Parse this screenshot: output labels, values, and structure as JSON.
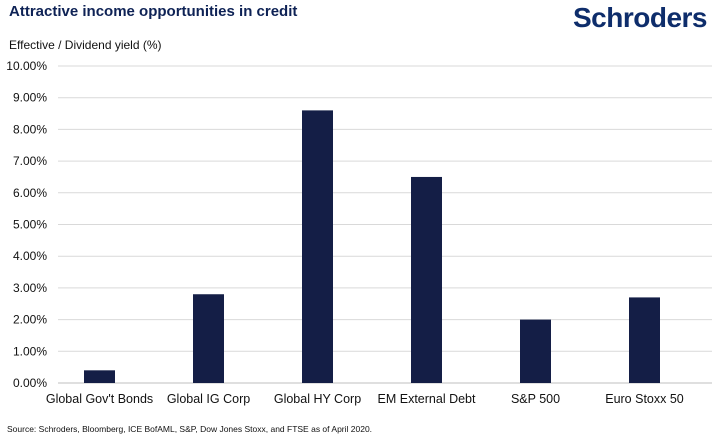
{
  "header": {
    "title": "Attractive income opportunities in credit",
    "logo_text": "Schroders"
  },
  "footer": {
    "source": "Source: Schroders, Bloomberg, ICE BofAML, S&P, Dow Jones Stoxx, and FTSE as of April 2020."
  },
  "chart_data": {
    "type": "bar",
    "title": "Attractive income opportunities in credit",
    "ylabel": "Effective / Dividend yield (%)",
    "xlabel": "",
    "categories": [
      "Global Gov't Bonds",
      "Global IG Corp",
      "Global HY Corp",
      "EM External Debt",
      "S&P 500",
      "Euro Stoxx 50"
    ],
    "values": [
      0.4,
      2.8,
      8.6,
      6.5,
      2.0,
      2.7
    ],
    "ylim": [
      0,
      10
    ],
    "yticks": [
      0,
      1,
      2,
      3,
      4,
      5,
      6,
      7,
      8,
      9,
      10
    ],
    "ytick_labels": [
      "0.00%",
      "1.00%",
      "2.00%",
      "3.00%",
      "4.00%",
      "5.00%",
      "6.00%",
      "7.00%",
      "8.00%",
      "9.00%",
      "10.00%"
    ],
    "grid": true,
    "bar_color": "#141e46",
    "grid_color": "#d9d9d9"
  }
}
